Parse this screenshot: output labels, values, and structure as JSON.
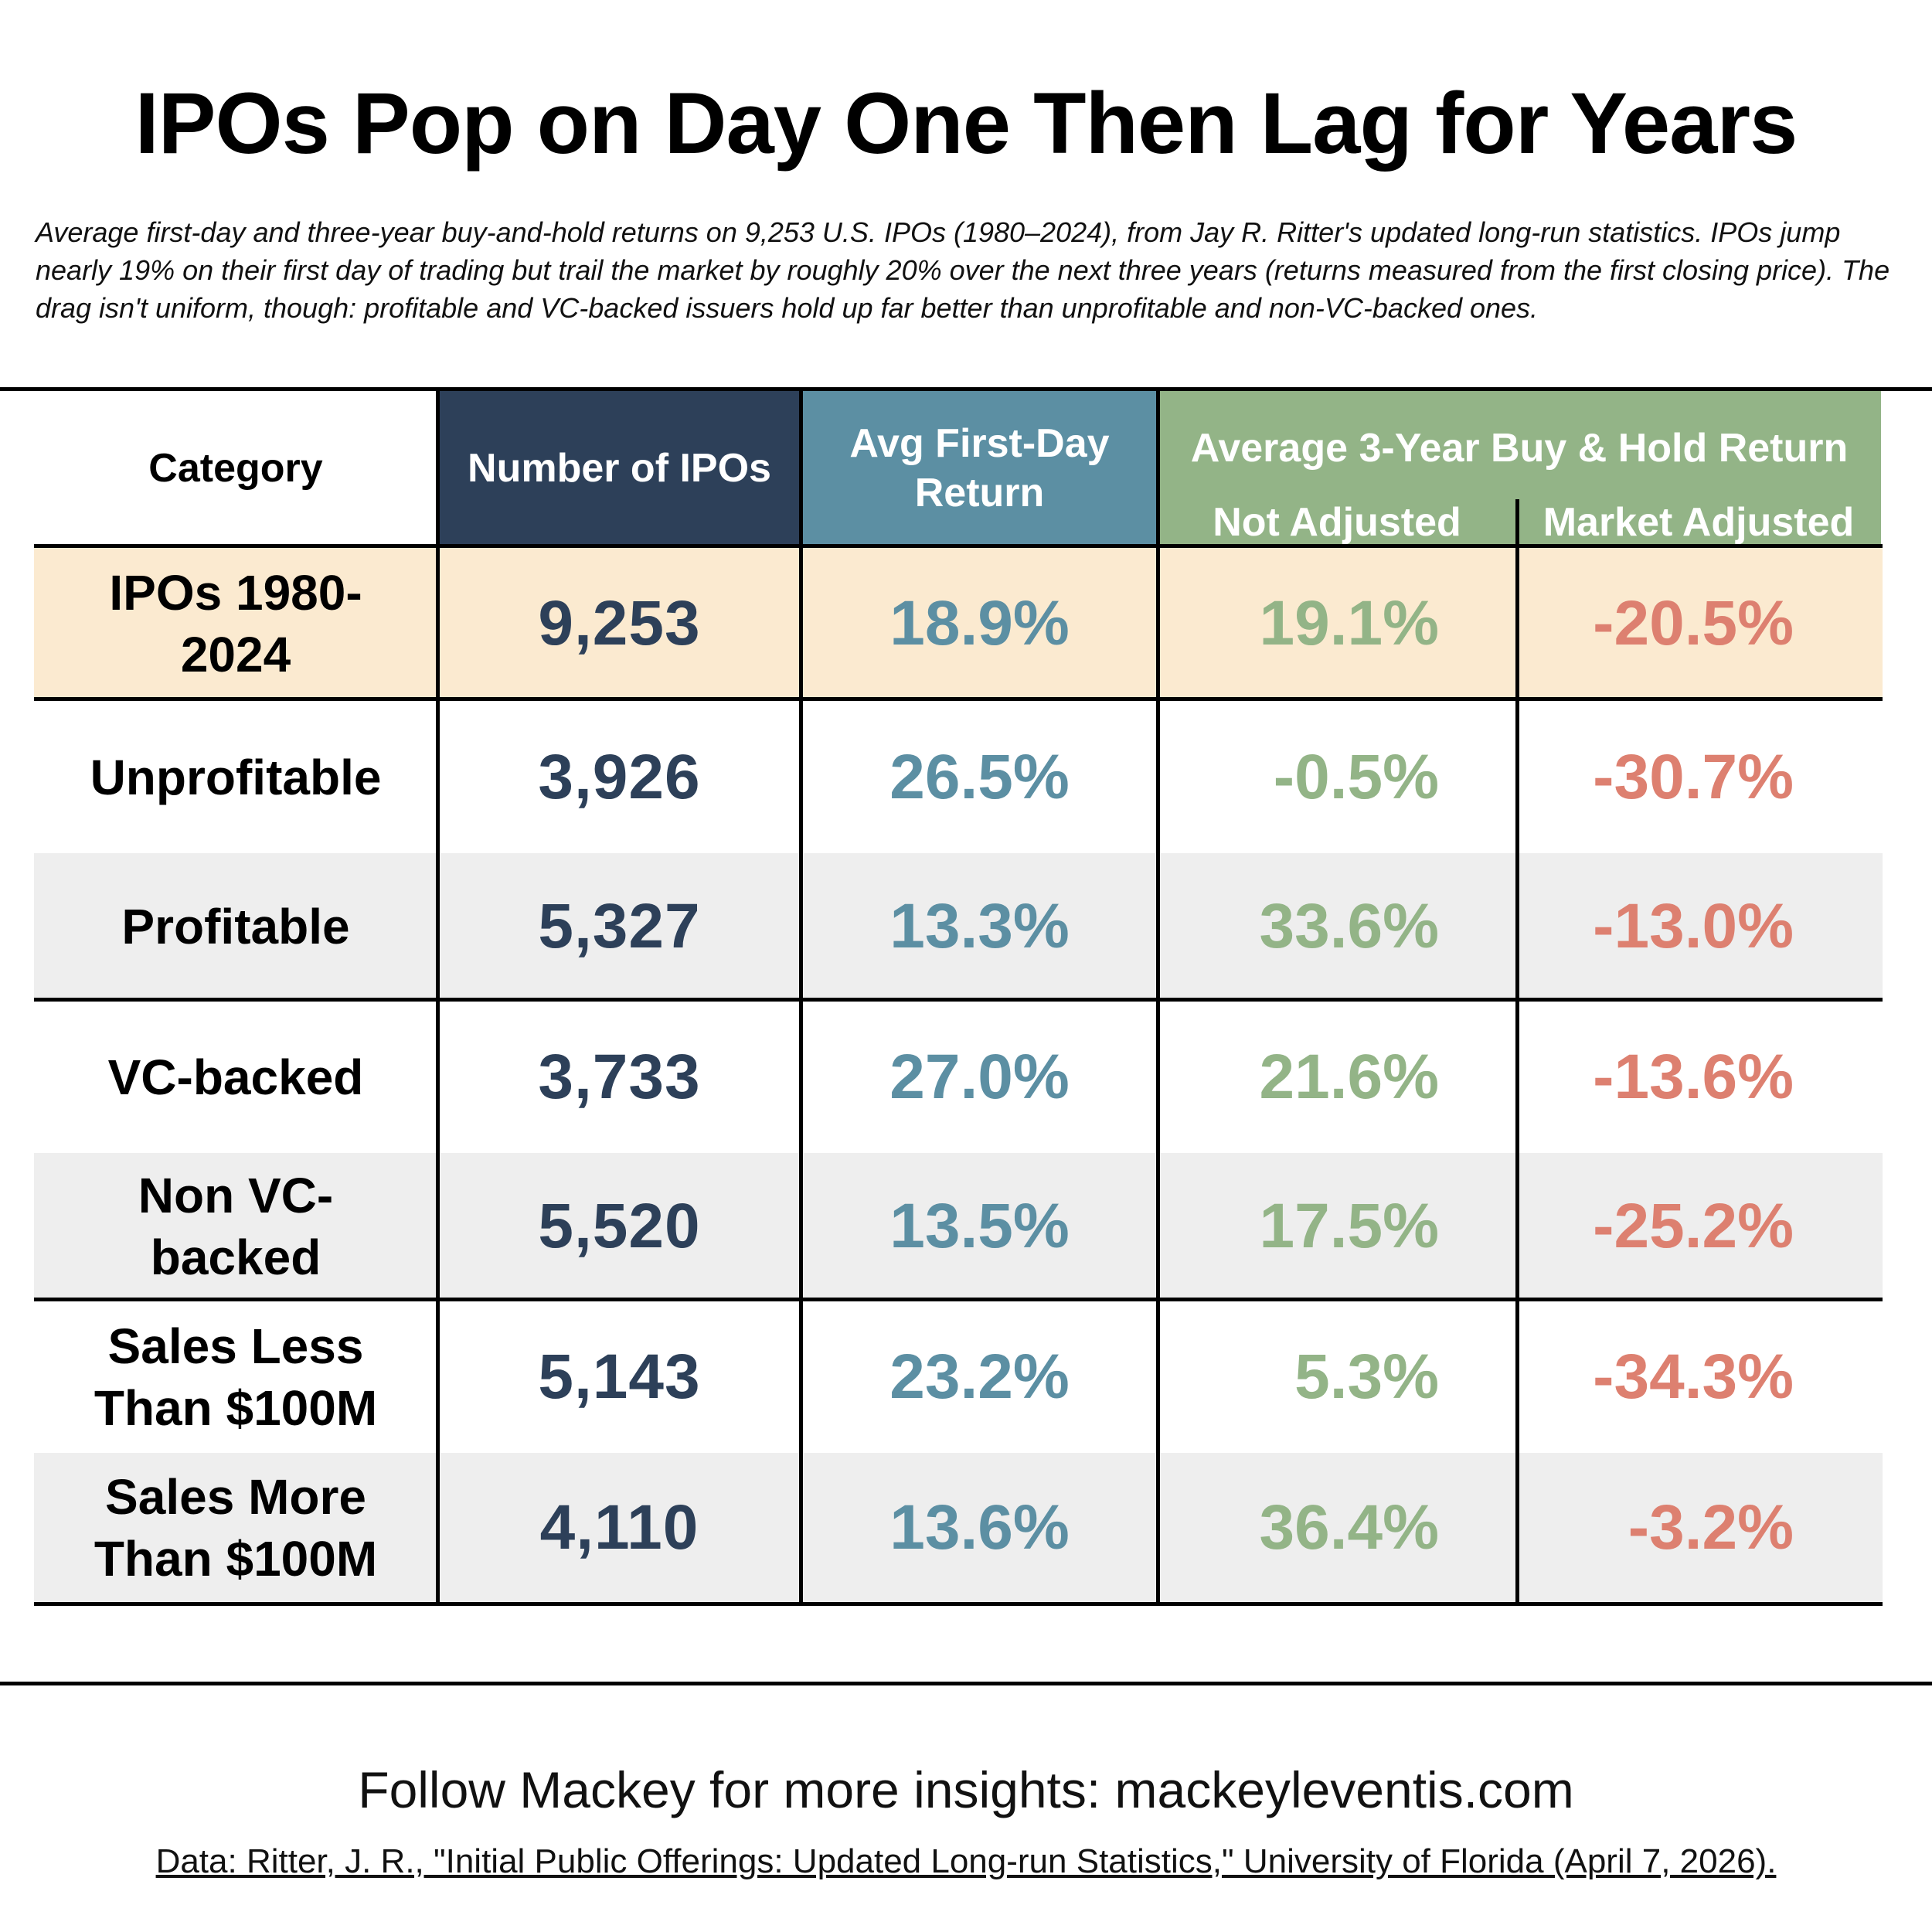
{
  "title": "IPOs Pop on Day One Then Lag for Years",
  "subtitle": "Average first-day and three-year buy-and-hold returns on 9,253 U.S. IPOs (1980–2024), from Jay R. Ritter's updated long-run statistics. IPOs jump nearly 19% on their first day of trading but trail the market by roughly 20% over the next three years (returns measured from the first closing price). The drag isn't uniform, though: profitable and VC-backed issuers hold up far better than unprofitable and non-VC-backed ones.",
  "headers": {
    "category": "Category",
    "count": "Number of IPOs",
    "first_day": "Avg First-Day Return",
    "three_year": "Average 3-Year Buy & Hold Return",
    "not_adjusted": "Not Adjusted",
    "market_adjusted": "Market Adjusted"
  },
  "colors": {
    "count_header": "#2d4059",
    "first_day_header": "#5c8fa3",
    "three_year_header": "#93b487",
    "highlight_row": "#fbead0",
    "shaded_row": "#eeeeee",
    "count_text": "#2d4059",
    "first_day_text": "#5c8fa3",
    "not_adjusted_text": "#93b487",
    "market_adjusted_text": "#dd8070"
  },
  "chart_data": {
    "type": "table",
    "columns": [
      "Category",
      "Number of IPOs",
      "Avg First-Day Return",
      "Not Adjusted",
      "Market Adjusted"
    ],
    "rows": [
      {
        "category": "IPOs 1980-2024",
        "count": "9,253",
        "first_day": "18.9%",
        "not_adjusted": "19.1%",
        "market_adjusted": "-20.5%"
      },
      {
        "category": "Unprofitable",
        "count": "3,926",
        "first_day": "26.5%",
        "not_adjusted": "-0.5%",
        "market_adjusted": "-30.7%"
      },
      {
        "category": "Profitable",
        "count": "5,327",
        "first_day": "13.3%",
        "not_adjusted": "33.6%",
        "market_adjusted": "-13.0%"
      },
      {
        "category": "VC-backed",
        "count": "3,733",
        "first_day": "27.0%",
        "not_adjusted": "21.6%",
        "market_adjusted": "-13.6%"
      },
      {
        "category": "Non VC-backed",
        "count": "5,520",
        "first_day": "13.5%",
        "not_adjusted": "17.5%",
        "market_adjusted": "-25.2%"
      },
      {
        "category": "Sales Less Than $100M",
        "count": "5,143",
        "first_day": "23.2%",
        "not_adjusted": "5.3%",
        "market_adjusted": "-34.3%"
      },
      {
        "category": "Sales More Than $100M",
        "count": "4,110",
        "first_day": "13.6%",
        "not_adjusted": "36.4%",
        "market_adjusted": "-3.2%"
      }
    ]
  },
  "footer": "Follow Mackey for more insights: mackeyleventis.com",
  "source": "Data: Ritter, J. R., \"Initial Public Offerings: Updated Long-run Statistics,\" University of Florida (April 7, 2026)."
}
